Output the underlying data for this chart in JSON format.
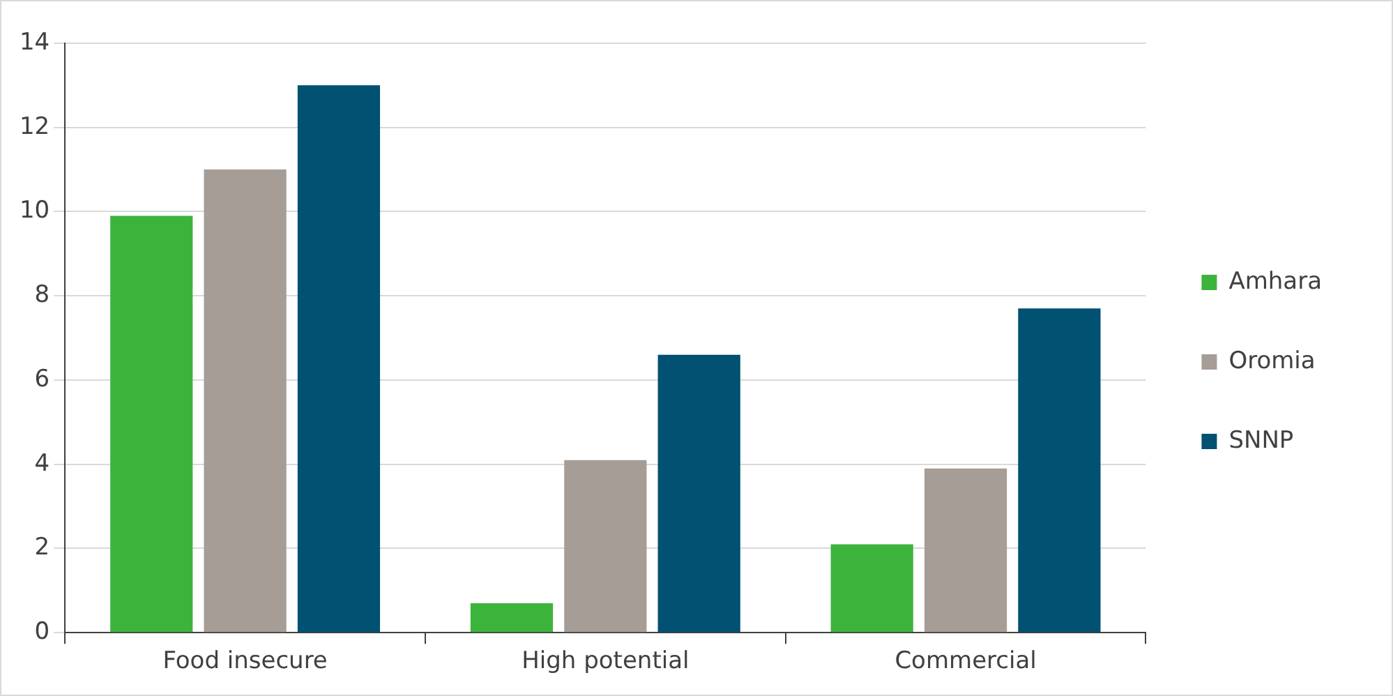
{
  "chart_data": {
    "type": "bar",
    "categories": [
      "Food insecure",
      "High potential",
      "Commercial"
    ],
    "series": [
      {
        "name": "Amhara",
        "color": "#3cb43c",
        "values": [
          9.9,
          0.7,
          2.1
        ]
      },
      {
        "name": "Oromia",
        "color": "#a69d96",
        "values": [
          11.0,
          4.1,
          3.9
        ]
      },
      {
        "name": "SNNP",
        "color": "#005172",
        "values": [
          13.0,
          6.6,
          7.7
        ]
      }
    ],
    "ylim": [
      0,
      14
    ],
    "yticks": [
      0,
      2,
      4,
      6,
      8,
      10,
      12,
      14
    ],
    "grid": "y",
    "legend": "right"
  }
}
